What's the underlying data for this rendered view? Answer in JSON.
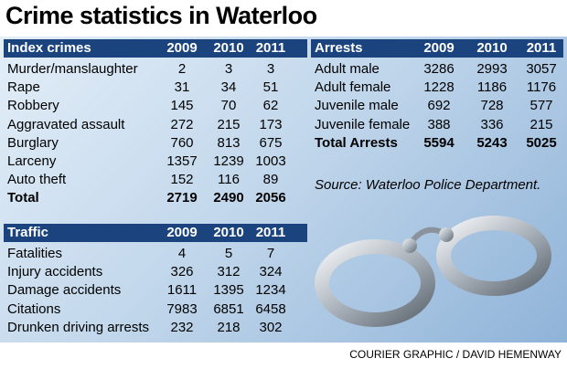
{
  "title": "Crime statistics in Waterloo",
  "tables": [
    {
      "header": [
        "Index crimes",
        "2009",
        "2010",
        "2011"
      ],
      "rows": [
        [
          "Murder/manslaughter",
          "2",
          "3",
          "3"
        ],
        [
          "Rape",
          "31",
          "34",
          "51"
        ],
        [
          "Robbery",
          "145",
          "70",
          "62"
        ],
        [
          "Aggravated assault",
          "272",
          "215",
          "173"
        ],
        [
          "Burglary",
          "760",
          "813",
          "675"
        ],
        [
          "Larceny",
          "1357",
          "1239",
          "1003"
        ],
        [
          "Auto theft",
          "152",
          "116",
          "89"
        ],
        [
          "Total",
          "2719",
          "2490",
          "2056"
        ]
      ]
    },
    {
      "header": [
        "Traffic",
        "2009",
        "2010",
        "2011"
      ],
      "rows": [
        [
          "Fatalities",
          "4",
          "5",
          "7"
        ],
        [
          "Injury accidents",
          "326",
          "312",
          "324"
        ],
        [
          "Damage accidents",
          "1611",
          "1395",
          "1234"
        ],
        [
          "Citations",
          "7983",
          "6851",
          "6458"
        ],
        [
          "Drunken driving arrests",
          "232",
          "218",
          "302"
        ]
      ]
    },
    {
      "header": [
        "Arrests",
        "2009",
        "2010",
        "2011"
      ],
      "rows": [
        [
          "Adult male",
          "3286",
          "2993",
          "3057"
        ],
        [
          "Adult female",
          "1228",
          "1186",
          "1176"
        ],
        [
          "Juvenile male",
          "692",
          "728",
          "577"
        ],
        [
          "Juvenile female",
          "388",
          "336",
          "215"
        ],
        [
          "Total Arrests",
          "5594",
          "5243",
          "5025"
        ]
      ]
    }
  ],
  "source": "Source: Waterloo Police Department.",
  "credit": "COURIER GRAPHIC / DAVID HEMENWAY"
}
